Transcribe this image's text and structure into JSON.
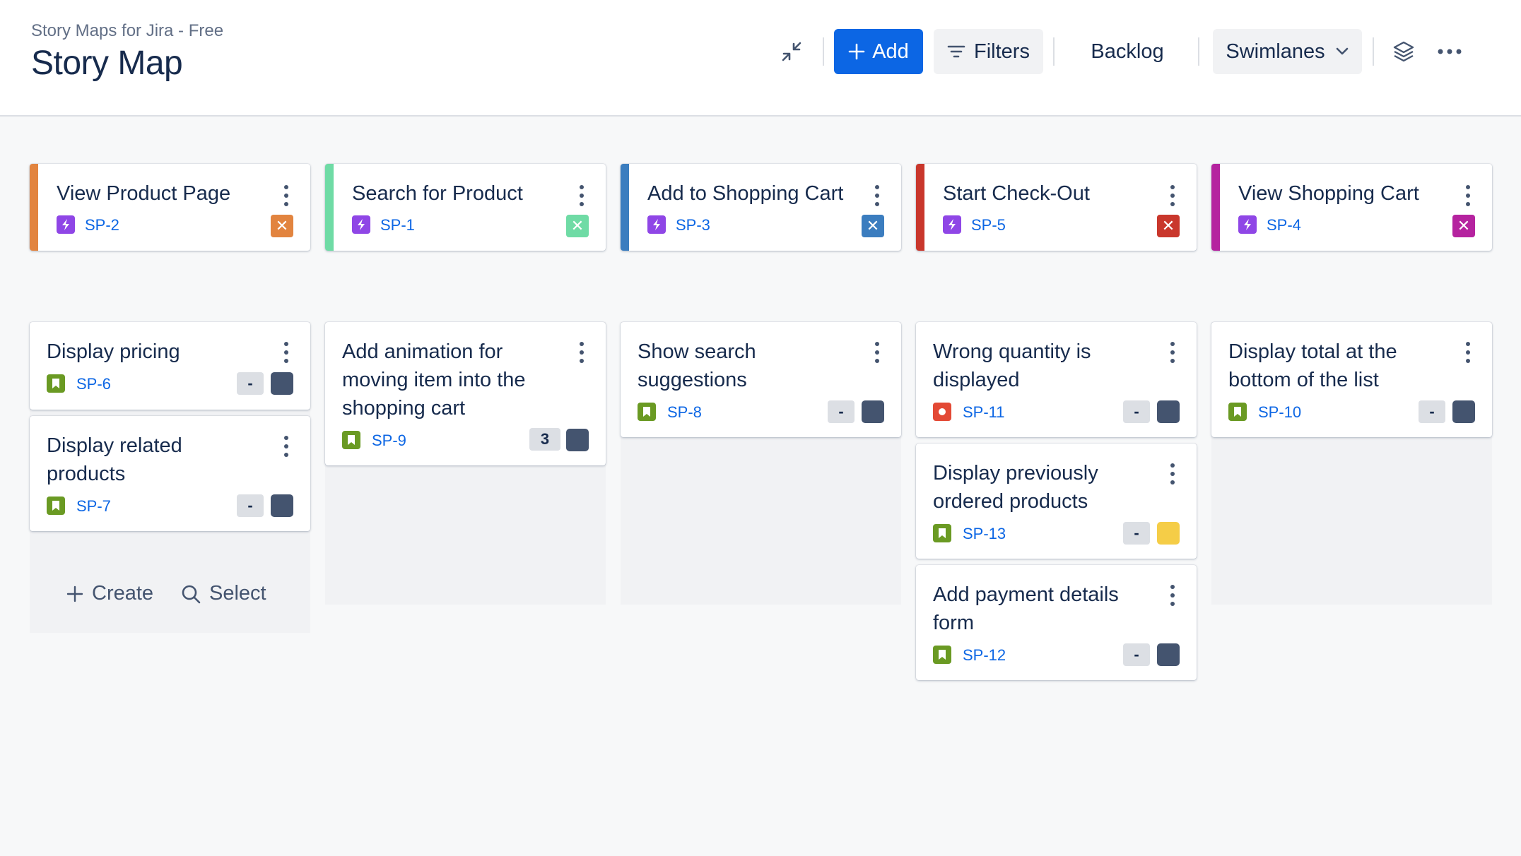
{
  "header": {
    "breadcrumb": "Story Maps for Jira - Free",
    "title": "Story Map"
  },
  "toolbar": {
    "add_label": "Add",
    "filters_label": "Filters",
    "backlog_label": "Backlog",
    "swimlanes_label": "Swimlanes"
  },
  "colors": {
    "primary": "#0c66e4",
    "story_green": "#6a9a23",
    "bug_red": "#e34935",
    "epic_purple": "#8f46e6",
    "avatar_default": "#44546f",
    "avatar_yellow": "#f5cd47"
  },
  "epics": [
    {
      "title": "View Product Page",
      "key": "SP-2",
      "color": "#e2843f"
    },
    {
      "title": "Search for Product",
      "key": "SP-1",
      "color": "#6fdba5"
    },
    {
      "title": "Add to Shopping Cart",
      "key": "SP-3",
      "color": "#3b7dbf"
    },
    {
      "title": "Start Check-Out",
      "key": "SP-5",
      "color": "#c9372c"
    },
    {
      "title": "View Shopping Cart",
      "key": "SP-4",
      "color": "#b5239f"
    }
  ],
  "stories": {
    "col0": [
      {
        "title": "Display pricing",
        "key": "SP-6",
        "estimate": "-",
        "type": "story",
        "icon": "bookmark-icon"
      },
      {
        "title": "Display related products",
        "key": "SP-7",
        "estimate": "-",
        "type": "story",
        "icon": "bookmark-icon"
      }
    ],
    "col1": [
      {
        "title": "Add animation for moving item into the shopping cart",
        "key": "SP-9",
        "estimate": "3",
        "type": "story",
        "icon": "bookmark-icon"
      }
    ],
    "col2": [
      {
        "title": "Show search suggestions",
        "key": "SP-8",
        "estimate": "-",
        "type": "story",
        "icon": "bookmark-icon"
      }
    ],
    "col3": [
      {
        "title": "Wrong quantity is displayed",
        "key": "SP-11",
        "estimate": "-",
        "type": "bug",
        "icon": "bug-icon"
      },
      {
        "title": "Display previously ordered products",
        "key": "SP-13",
        "estimate": "-",
        "type": "story",
        "icon": "bookmark-icon"
      },
      {
        "title": "Add payment details form",
        "key": "SP-12",
        "estimate": "-",
        "type": "story",
        "icon": "bookmark-icon"
      }
    ],
    "col4": [
      {
        "title": "Display total at the bottom of the list",
        "key": "SP-10",
        "estimate": "-",
        "type": "story",
        "icon": "bookmark-icon"
      }
    ]
  },
  "create_label": "Create",
  "select_label": "Select"
}
